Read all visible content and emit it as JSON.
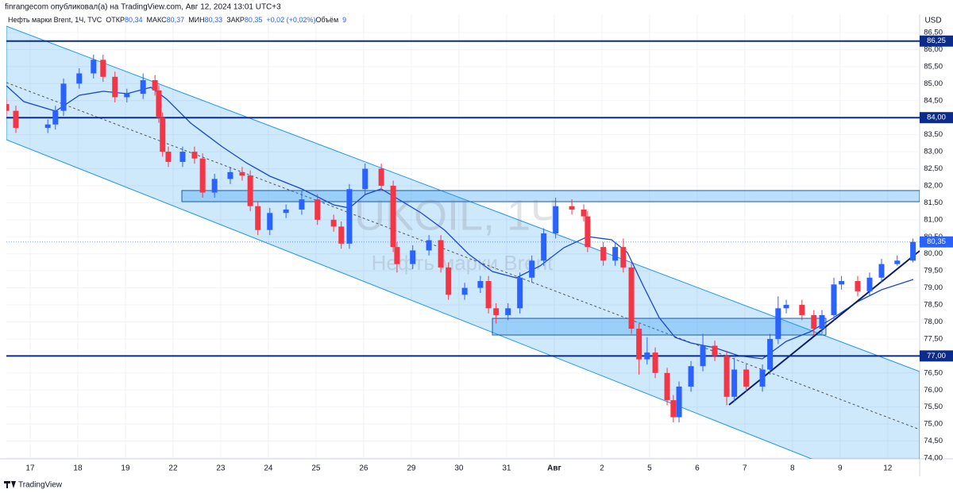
{
  "chart_data": {
    "type": "candlestick",
    "title": "finrangecom опубликовал(а) на TradingView.com, Авг 12, 2024 13:01 UTC+3",
    "subtitle": "Нефть марки Brent, 1Ч, TVC",
    "info": [
      {
        "text": "ОТКР",
        "color": "#131722"
      },
      {
        "text": "80,34",
        "color": "#2962ff"
      },
      {
        "text": "МАКС",
        "color": "#131722"
      },
      {
        "text": "80,37",
        "color": "#2962ff"
      },
      {
        "text": "МИН",
        "color": "#131722"
      },
      {
        "text": "80,33",
        "color": "#2962ff"
      },
      {
        "text": "ЗАКР",
        "color": "#131722"
      },
      {
        "text": "80,35",
        "color": "#2962ff"
      },
      {
        "text": "+0,02 (+0,02%)",
        "color": "#2962ff"
      },
      {
        "text": "Объём",
        "color": "#131722"
      },
      {
        "text": "9",
        "color": "#2962ff"
      }
    ],
    "watermark": "UKOIL, 1Ч",
    "watermark_sub": "Нефть марки Brent",
    "currency": "USD",
    "brand": "TradingView",
    "up_color": "#2962ff",
    "down_color": "#f23645",
    "x": [
      -0.5,
      -0.3,
      0.37,
      0.53,
      0.7,
      1.03,
      1.33,
      1.53,
      1.78,
      2.03,
      2.37,
      2.62,
      2.7,
      2.78,
      2.9,
      3.2,
      3.45,
      3.62,
      3.87,
      4.2,
      4.45,
      4.62,
      4.78,
      5.03,
      5.37,
      5.7,
      6.03,
      6.37,
      6.53,
      6.7,
      7.03,
      7.37,
      7.62,
      7.7,
      8.03,
      8.37,
      8.62,
      8.78,
      9.12,
      9.45,
      9.62,
      9.78,
      10.03,
      10.28,
      10.53,
      10.78,
      11.03,
      11.37,
      11.62,
      11.7,
      12.03,
      12.28,
      12.45,
      12.62,
      12.78,
      12.95,
      13.12,
      13.37,
      13.5,
      13.62,
      13.87,
      14.12,
      14.37,
      14.62,
      14.78,
      15.03,
      15.37,
      15.53,
      15.7,
      15.87,
      16.2,
      16.45,
      16.62,
      16.87,
      17.03,
      17.37,
      17.62,
      17.87,
      18.2,
      18.53
    ],
    "open": [
      84.4,
      84.2,
      83.7,
      83.8,
      84.2,
      85.0,
      85.3,
      85.7,
      85.2,
      84.6,
      84.7,
      85.1,
      84.8,
      84.0,
      83.0,
      82.7,
      83.0,
      82.8,
      81.8,
      82.2,
      82.4,
      82.3,
      81.4,
      80.7,
      81.2,
      81.3,
      81.6,
      81.0,
      80.8,
      80.3,
      81.9,
      82.5,
      82.0,
      80.2,
      79.7,
      80.1,
      80.4,
      79.6,
      78.8,
      79.0,
      79.2,
      78.4,
      78.2,
      78.4,
      79.3,
      79.8,
      80.6,
      81.4,
      81.3,
      81.1,
      80.2,
      79.8,
      80.2,
      79.6,
      77.8,
      76.9,
      77.1,
      76.5,
      75.7,
      75.2,
      76.1,
      76.7,
      77.3,
      77.0,
      75.8,
      76.6,
      76.1,
      76.6,
      77.5,
      78.4,
      78.5,
      78.2,
      77.8,
      78.2,
      79.1,
      79.2,
      78.9,
      79.3,
      79.7,
      79.8
    ],
    "high": [
      84.55,
      84.35,
      83.95,
      84.35,
      85.15,
      85.45,
      85.85,
      85.85,
      85.35,
      84.85,
      85.3,
      85.25,
      84.95,
      84.15,
      83.15,
      83.15,
      83.15,
      82.95,
      82.35,
      82.55,
      82.55,
      82.45,
      81.55,
      81.35,
      81.45,
      81.85,
      81.75,
      81.15,
      80.95,
      82.05,
      82.65,
      82.65,
      82.15,
      80.35,
      80.25,
      80.55,
      80.55,
      79.75,
      79.15,
      79.35,
      79.35,
      78.55,
      78.55,
      79.45,
      79.95,
      80.75,
      81.65,
      81.6,
      81.45,
      81.25,
      80.35,
      80.35,
      80.45,
      79.75,
      77.95,
      77.55,
      77.25,
      76.65,
      75.85,
      76.25,
      76.85,
      77.65,
      77.45,
      77.15,
      76.95,
      76.75,
      76.75,
      77.65,
      78.75,
      78.65,
      78.65,
      78.35,
      78.35,
      79.3,
      79.35,
      79.35,
      79.45,
      79.85,
      79.95,
      80.45
    ],
    "low": [
      84.05,
      83.55,
      83.55,
      83.65,
      84.05,
      84.85,
      85.15,
      85.05,
      84.45,
      84.45,
      84.55,
      84.65,
      83.85,
      82.85,
      82.55,
      82.55,
      82.65,
      81.65,
      81.65,
      82.05,
      82.15,
      81.25,
      80.55,
      80.55,
      81.05,
      81.15,
      80.85,
      80.65,
      80.15,
      80.15,
      81.75,
      81.85,
      80.05,
      79.45,
      79.55,
      79.95,
      79.45,
      78.65,
      78.65,
      78.85,
      78.25,
      77.95,
      78.05,
      78.25,
      79.15,
      79.65,
      80.45,
      81.15,
      80.95,
      80.05,
      79.65,
      79.65,
      79.45,
      77.65,
      76.45,
      76.75,
      76.35,
      75.55,
      75.05,
      75.05,
      75.95,
      76.55,
      76.85,
      75.55,
      75.65,
      75.95,
      75.95,
      76.45,
      77.35,
      78.25,
      78.05,
      77.6,
      77.65,
      78.05,
      78.95,
      78.75,
      78.75,
      79.15,
      79.65,
      79.75
    ],
    "close": [
      84.2,
      83.7,
      83.8,
      84.2,
      85.0,
      85.3,
      85.7,
      85.2,
      84.6,
      84.7,
      85.1,
      84.8,
      84.0,
      83.0,
      82.7,
      83.0,
      82.8,
      81.8,
      82.2,
      82.4,
      82.3,
      81.4,
      80.7,
      81.2,
      81.3,
      81.6,
      81.0,
      80.8,
      80.3,
      81.9,
      82.5,
      82.0,
      80.2,
      79.7,
      80.1,
      80.4,
      79.6,
      78.8,
      79.0,
      79.2,
      78.4,
      78.2,
      78.4,
      79.3,
      79.8,
      80.6,
      81.4,
      81.3,
      81.1,
      80.2,
      79.8,
      80.2,
      79.6,
      77.8,
      76.9,
      77.1,
      76.5,
      75.7,
      75.2,
      76.1,
      76.7,
      77.3,
      77.0,
      75.8,
      76.6,
      76.1,
      76.6,
      77.5,
      78.4,
      78.5,
      78.2,
      77.8,
      78.2,
      79.1,
      79.2,
      78.9,
      79.3,
      79.7,
      79.8,
      80.35
    ],
    "xlim": [
      -0.5,
      18.67
    ],
    "xticks": [
      {
        "value": 0,
        "label": "17"
      },
      {
        "value": 1,
        "label": "18"
      },
      {
        "value": 2,
        "label": "19"
      },
      {
        "value": 3,
        "label": "22"
      },
      {
        "value": 4,
        "label": "23"
      },
      {
        "value": 5,
        "label": "24"
      },
      {
        "value": 6,
        "label": "25"
      },
      {
        "value": 7,
        "label": "26"
      },
      {
        "value": 8,
        "label": "29"
      },
      {
        "value": 9,
        "label": "30"
      },
      {
        "value": 10,
        "label": "31"
      },
      {
        "value": 11,
        "label": "Авг"
      },
      {
        "value": 12,
        "label": "2"
      },
      {
        "value": 13,
        "label": "5"
      },
      {
        "value": 14,
        "label": "6"
      },
      {
        "value": 15,
        "label": "7"
      },
      {
        "value": 16,
        "label": "8"
      },
      {
        "value": 17,
        "label": "9"
      },
      {
        "value": 18,
        "label": "12"
      }
    ],
    "ylim": [
      74.0,
      86.5
    ],
    "yticks": [
      {
        "value": 74.0,
        "label": "74,00"
      },
      {
        "value": 74.5,
        "label": "74,50"
      },
      {
        "value": 75.0,
        "label": "75,00"
      },
      {
        "value": 75.5,
        "label": "75,50"
      },
      {
        "value": 76.0,
        "label": "76,00"
      },
      {
        "value": 76.5,
        "label": "76,50"
      },
      {
        "value": 77.0,
        "label": "77,00"
      },
      {
        "value": 77.5,
        "label": "77,50"
      },
      {
        "value": 78.0,
        "label": "78,00"
      },
      {
        "value": 78.5,
        "label": "78,50"
      },
      {
        "value": 79.0,
        "label": "79,00"
      },
      {
        "value": 79.5,
        "label": "79,50"
      },
      {
        "value": 80.0,
        "label": "80,00"
      },
      {
        "value": 80.5,
        "label": "80,50"
      },
      {
        "value": 81.0,
        "label": "81,00"
      },
      {
        "value": 81.5,
        "label": "81,50"
      },
      {
        "value": 82.0,
        "label": "82,00"
      },
      {
        "value": 82.5,
        "label": "82,50"
      },
      {
        "value": 83.0,
        "label": "83,00"
      },
      {
        "value": 83.5,
        "label": "83,50"
      },
      {
        "value": 84.0,
        "label": "84,00"
      },
      {
        "value": 84.5,
        "label": "84,50"
      },
      {
        "value": 85.0,
        "label": "85,00"
      },
      {
        "value": 85.5,
        "label": "85,50"
      },
      {
        "value": 86.0,
        "label": "86,00"
      },
      {
        "value": 86.5,
        "label": "86,50"
      }
    ],
    "hlines": [
      {
        "value": 86.25,
        "label": "86,25"
      },
      {
        "value": 84.0,
        "label": "84,00"
      },
      {
        "value": 77.0,
        "label": "77,00"
      }
    ],
    "hline_color": "#0c2c8c",
    "last_price": {
      "value": 80.35,
      "label": "80,35"
    }
  }
}
